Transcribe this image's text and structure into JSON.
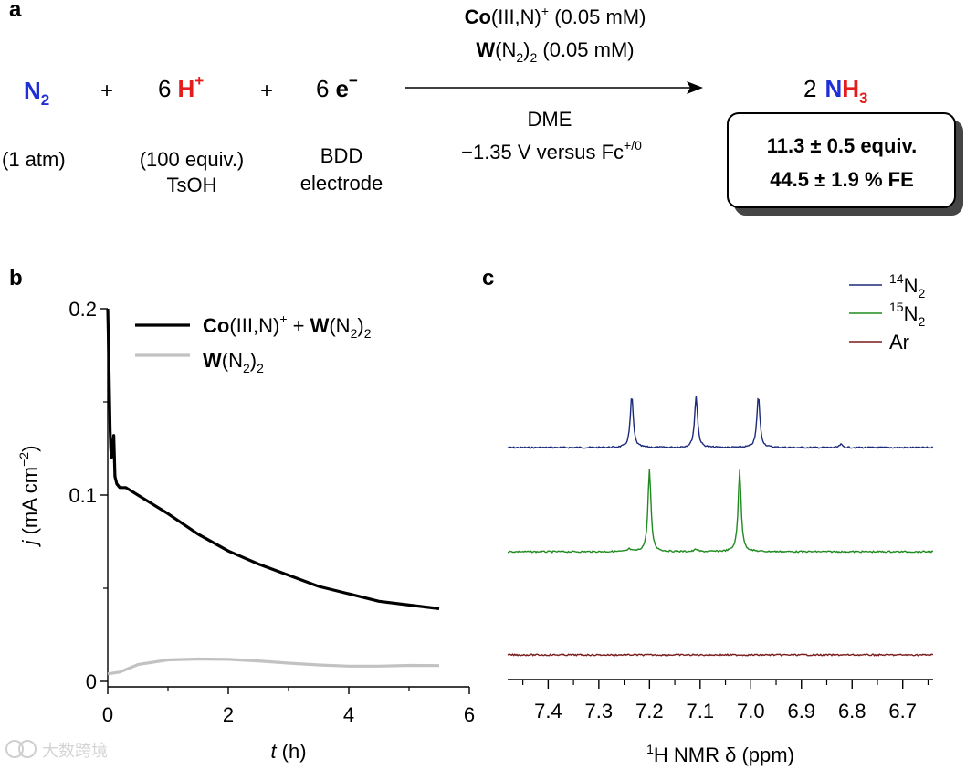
{
  "panel_labels": {
    "a": "a",
    "b": "b",
    "c": "c"
  },
  "reaction": {
    "reactant_n2": {
      "prefix": "N",
      "sub": "2",
      "note": "(1 atm)"
    },
    "plus1": "+",
    "proton": {
      "coef": "6",
      "sym": "H",
      "sup": "+",
      "note1": "(100 equiv.)",
      "note2": "TsOH"
    },
    "plus2": "+",
    "electron": {
      "coef": "6",
      "sym": "e",
      "sup": "−",
      "note1": "BDD",
      "note2": "electrode"
    },
    "arrow_above_line1": {
      "bold": "Co",
      "rest": "(III,N)",
      "sup": "+",
      "tail": " (0.05 mM)"
    },
    "arrow_above_line2": {
      "bold": "W",
      "rest1": "(N",
      "sub": "2",
      "rest2": ")",
      "sub2": "2",
      "tail": " (0.05 mM)"
    },
    "arrow_below_line1": "DME",
    "arrow_below_line2": {
      "main": "−1.35 V versus Fc",
      "sup": "+/0"
    },
    "product": {
      "coef": "2",
      "n": "N",
      "h": "H",
      "sub": "3"
    },
    "result_line1": "11.3 ± 0.5 equiv.",
    "result_line2": "44.5 ± 1.9 % FE"
  },
  "colors": {
    "blue": "#1f2fd6",
    "red": "#e31c1c",
    "black_trace": "#000000",
    "grey_trace": "#c2c2c2",
    "n14": "#1c2a7a",
    "n15": "#1f8a1f",
    "ar": "#7a1c1c"
  },
  "chart_data": [
    {
      "type": "line",
      "panel": "b",
      "xlabel": {
        "italic": "t",
        "rest": " (h)"
      },
      "ylabel": {
        "italic": "j",
        "rest": " (mA cm",
        "sup": "−2",
        "close": ")"
      },
      "xlim": [
        0,
        6
      ],
      "ylim": [
        0,
        0.2
      ],
      "xticks": [
        0,
        2,
        4,
        6
      ],
      "xtick_labels": [
        "0",
        "2",
        "4",
        "6"
      ],
      "yticks": [
        0,
        0.1,
        0.2
      ],
      "ytick_labels": [
        "0",
        "0.1",
        "0.2"
      ],
      "legend": [
        {
          "name": "Co(III,N)+ + W(N2)2",
          "html_parts": [
            "Co",
            "(III,N)",
            "+",
            " + ",
            "W",
            "(N",
            "2",
            ")",
            "2"
          ]
        },
        {
          "name": "W(N2)2",
          "html_parts": [
            "W",
            "(N",
            "2",
            ")",
            "2"
          ]
        }
      ],
      "series": [
        {
          "name": "Co(III,N)+ + W(N2)2",
          "x": [
            0.0,
            0.02,
            0.04,
            0.05,
            0.06,
            0.08,
            0.1,
            0.12,
            0.15,
            0.2,
            0.3,
            0.5,
            0.75,
            1.0,
            1.5,
            2.0,
            2.5,
            3.0,
            3.5,
            4.0,
            4.5,
            5.0,
            5.5
          ],
          "y": [
            0.2,
            0.17,
            0.135,
            0.125,
            0.12,
            0.125,
            0.132,
            0.11,
            0.106,
            0.104,
            0.104,
            0.1,
            0.095,
            0.09,
            0.079,
            0.07,
            0.063,
            0.057,
            0.051,
            0.047,
            0.043,
            0.041,
            0.039
          ]
        },
        {
          "name": "W(N2)2",
          "x": [
            0.0,
            0.2,
            0.5,
            1.0,
            1.5,
            2.0,
            2.5,
            3.0,
            3.5,
            4.0,
            4.5,
            5.0,
            5.5
          ],
          "y": [
            0.004,
            0.005,
            0.009,
            0.0115,
            0.012,
            0.0118,
            0.011,
            0.0098,
            0.0088,
            0.0082,
            0.0082,
            0.0086,
            0.0085
          ]
        }
      ]
    },
    {
      "type": "line",
      "panel": "c",
      "xlabel": {
        "sup": "1",
        "rest": "H NMR δ (ppm)"
      },
      "xlim": [
        7.48,
        6.64
      ],
      "xticks": [
        7.4,
        7.3,
        7.2,
        7.1,
        7.0,
        6.9,
        6.8,
        6.7
      ],
      "xtick_labels": [
        "7.4",
        "7.3",
        "7.2",
        "7.1",
        "7.0",
        "6.9",
        "6.8",
        "6.7"
      ],
      "legend": [
        {
          "sup": "14",
          "base": "N",
          "sub": "2"
        },
        {
          "sup": "15",
          "base": "N",
          "sub": "2"
        },
        {
          "base": "Ar"
        }
      ],
      "series": [
        {
          "name": "14N2",
          "peaks_ppm": [
            7.235,
            7.108,
            6.985,
            6.822
          ],
          "peak_heights": [
            1.0,
            1.0,
            1.0,
            0.06
          ]
        },
        {
          "name": "15N2",
          "peaks_ppm": [
            7.2,
            7.022,
            7.108,
            7.24
          ],
          "peak_heights": [
            1.0,
            1.0,
            0.03,
            0.03
          ]
        },
        {
          "name": "Ar",
          "peaks_ppm": [],
          "peak_heights": []
        }
      ]
    }
  ],
  "watermark": "大数跨境"
}
